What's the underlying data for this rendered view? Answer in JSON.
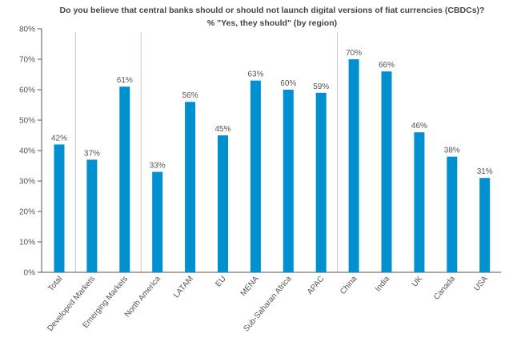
{
  "chart_data": {
    "type": "bar",
    "title": "Do you believe that central banks should or should not launch digital versions of fiat currencies (CBDCs)?",
    "subtitle": "% \"Yes, they should\" (by region)",
    "xlabel": "",
    "ylabel": "",
    "ylim": [
      0,
      80
    ],
    "yticks": [
      "0%",
      "10%",
      "20%",
      "30%",
      "40%",
      "50%",
      "60%",
      "70%",
      "80%"
    ],
    "yticks_values": [
      0,
      10,
      20,
      30,
      40,
      50,
      60,
      70,
      80
    ],
    "categories": [
      "Total",
      "Developed Markets",
      "Emerging Markets",
      "North America",
      "LATAM",
      "EU",
      "MENA",
      "Sub-Saharan Africa",
      "APAC",
      "China",
      "India",
      "UK",
      "Canada",
      "USA"
    ],
    "values": [
      42,
      37,
      61,
      33,
      56,
      45,
      63,
      60,
      59,
      70,
      66,
      46,
      38,
      31
    ],
    "data_labels": [
      "42%",
      "37%",
      "61%",
      "33%",
      "56%",
      "45%",
      "63%",
      "60%",
      "59%",
      "70%",
      "66%",
      "46%",
      "38%",
      "31%"
    ],
    "group_separators_after_index": [
      0,
      2,
      8
    ],
    "grid": false,
    "legend": "none",
    "bar_color": "#0090d0"
  }
}
